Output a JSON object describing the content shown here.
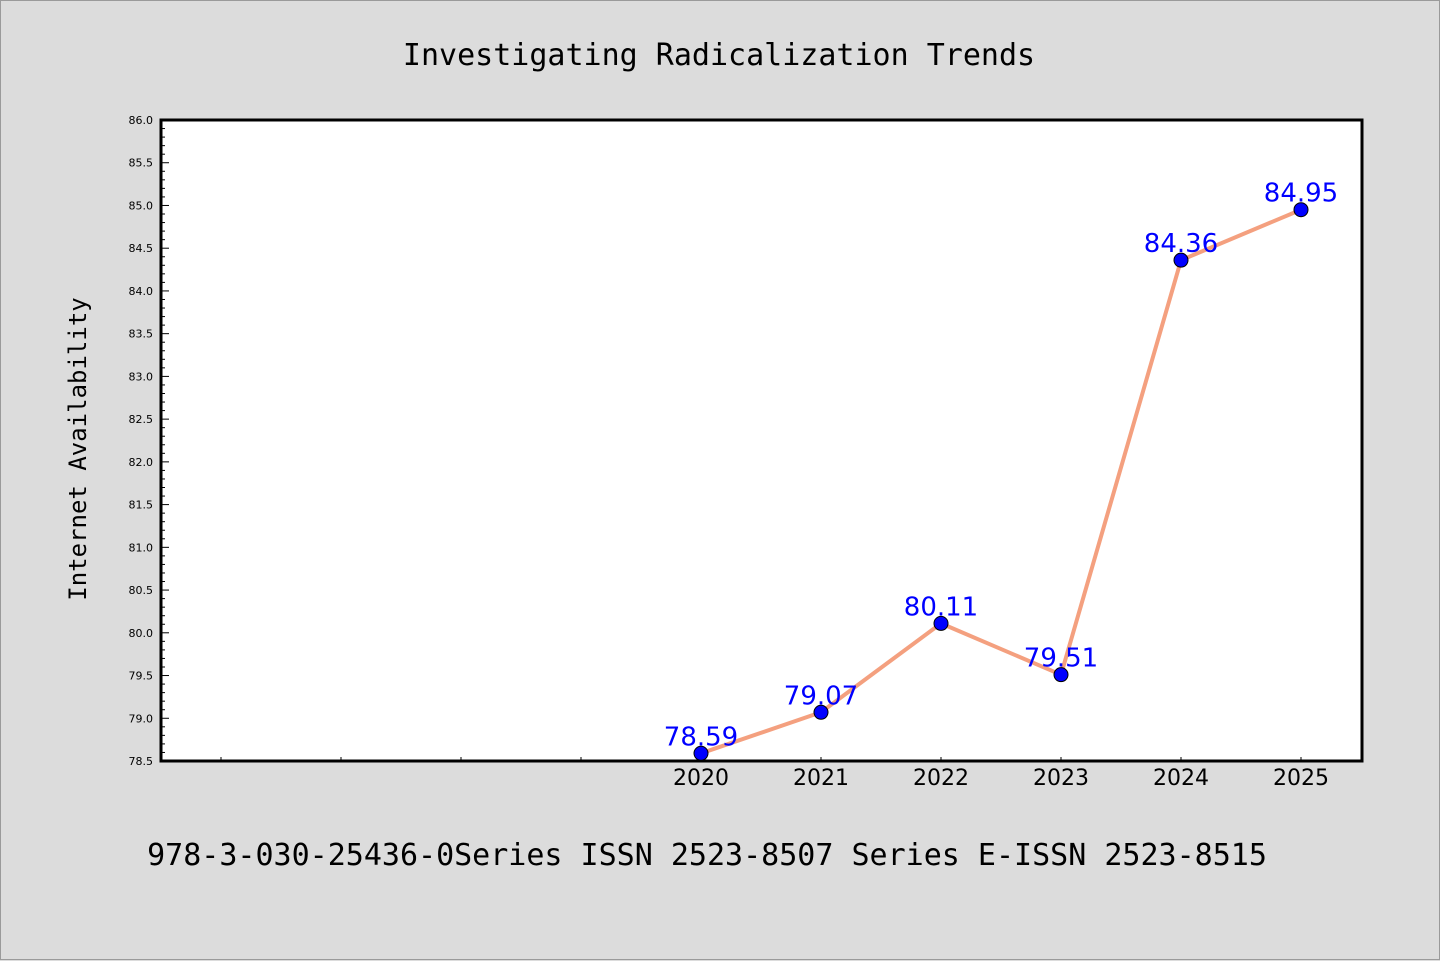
{
  "chart_data": {
    "type": "line",
    "title": "Investigating Radicalization Trends",
    "xlabel": "",
    "ylabel": "Internet Availability",
    "categories": [
      "2020",
      "2021",
      "2022",
      "2023",
      "2024",
      "2025"
    ],
    "series": [
      {
        "values": [
          78.59,
          79.07,
          80.11,
          79.51,
          84.36,
          84.95
        ],
        "labels": [
          "78.59",
          "79.07",
          "80.11",
          "79.51",
          "84.36",
          "84.95"
        ]
      }
    ],
    "ylim": [
      78.5,
      86.0
    ],
    "yticks": [
      "78.5",
      "79.0",
      "79.5",
      "80.0",
      "80.5",
      "81.0",
      "81.5",
      "82.0",
      "82.5",
      "83.0",
      "83.5",
      "84.0",
      "84.5",
      "85.0",
      "85.5",
      "86.0"
    ],
    "grid": false,
    "legend": "none",
    "colors": {
      "line": "#f4a07f",
      "marker": "#0000ff",
      "label": "#0000ff",
      "background": "#dcdcdc",
      "plot_bg": "#ffffff"
    }
  },
  "footer": {
    "text": "978-3-030-25436-0Series ISSN 2523-8507 Series E-ISSN 2523-8515"
  }
}
